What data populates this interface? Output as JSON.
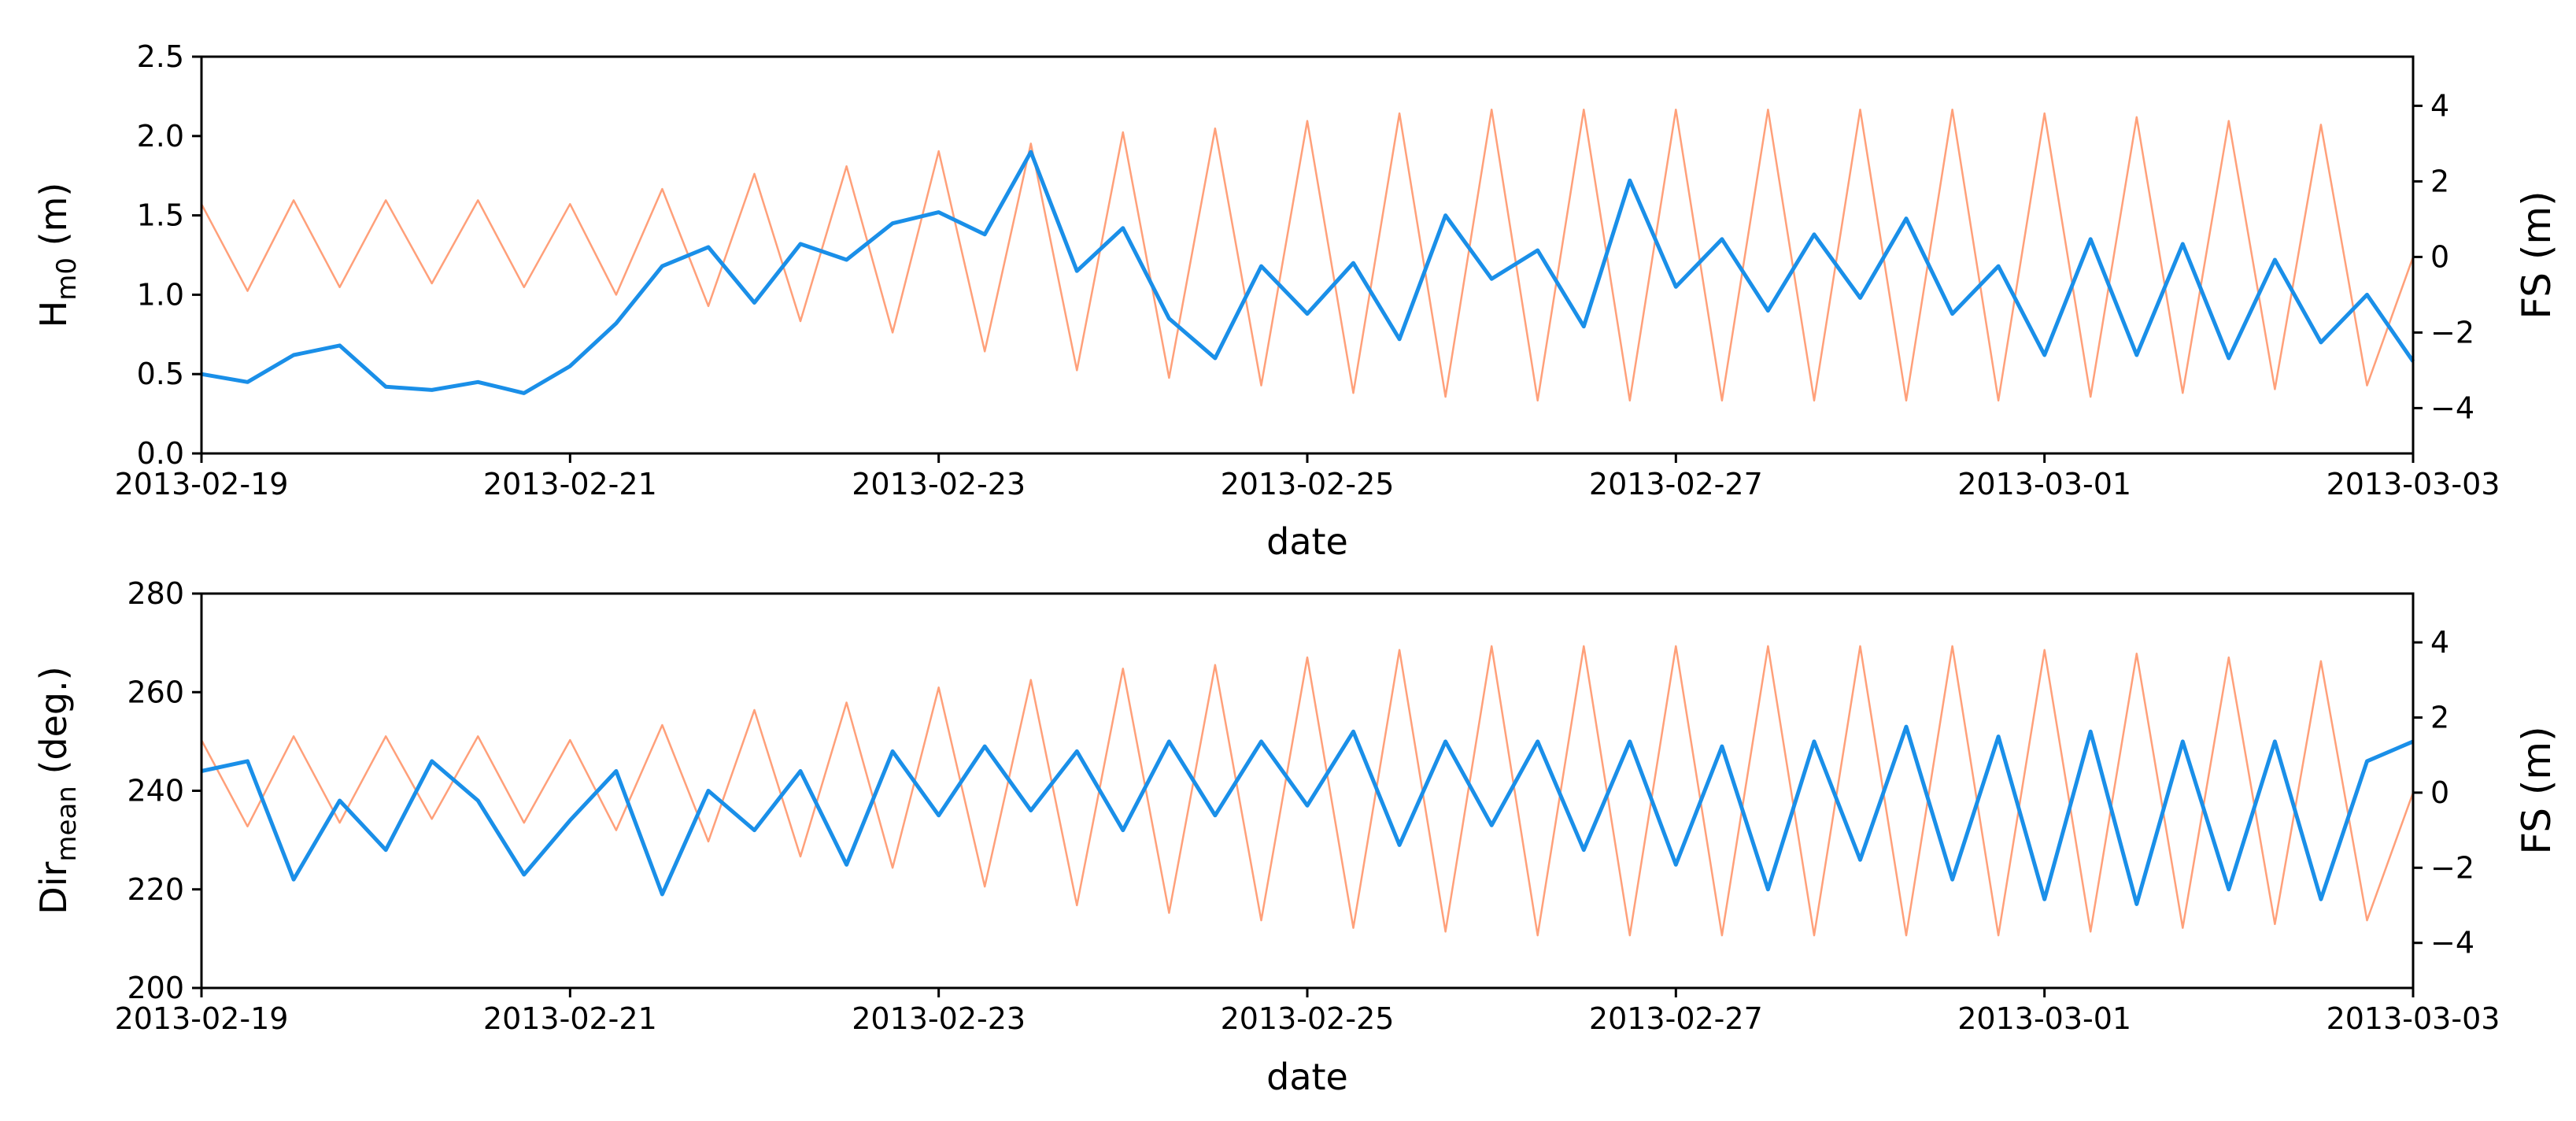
{
  "colors": {
    "primary": "#1a8fe8",
    "secondary": "#ffa07a",
    "axis": "#000000"
  },
  "chart_data": [
    {
      "type": "line",
      "xlabel": "date",
      "ylabel_left": {
        "main": "H",
        "sub": "m0",
        "rest": " (m)"
      },
      "ylabel_right": "FS (m)",
      "xlim": [
        "2013-02-19",
        "2013-03-03"
      ],
      "ylim_left": [
        0,
        2.5
      ],
      "ylim_right": [
        -5.2,
        5.3
      ],
      "xticks": [
        "2013-02-19",
        "2013-02-21",
        "2013-02-23",
        "2013-02-25",
        "2013-02-27",
        "2013-03-01",
        "2013-03-03"
      ],
      "yticks_left": [
        "0.0",
        "0.5",
        "1.0",
        "1.5",
        "2.0",
        "2.5"
      ],
      "yticks_right": [
        "−4",
        "−2",
        "0",
        "2",
        "4"
      ],
      "yticks_right_values": [
        -4,
        -2,
        0,
        2,
        4
      ],
      "grid": false,
      "series": [
        {
          "axis": "left",
          "color": "#1a8fe8",
          "x": [
            "2013-02-19 00:00",
            "2013-02-19 06:00",
            "2013-02-19 12:00",
            "2013-02-19 18:00",
            "2013-02-20 00:00",
            "2013-02-20 06:00",
            "2013-02-20 12:00",
            "2013-02-20 18:00",
            "2013-02-21 00:00",
            "2013-02-21 06:00",
            "2013-02-21 12:00",
            "2013-02-21 18:00",
            "2013-02-22 00:00",
            "2013-02-22 06:00",
            "2013-02-22 12:00",
            "2013-02-22 18:00",
            "2013-02-23 00:00",
            "2013-02-23 06:00",
            "2013-02-23 12:00",
            "2013-02-23 18:00",
            "2013-02-24 00:00",
            "2013-02-24 06:00",
            "2013-02-24 12:00",
            "2013-02-24 18:00",
            "2013-02-25 00:00",
            "2013-02-25 06:00",
            "2013-02-25 12:00",
            "2013-02-25 18:00",
            "2013-02-26 00:00",
            "2013-02-26 06:00",
            "2013-02-26 12:00",
            "2013-02-26 18:00",
            "2013-02-27 00:00",
            "2013-02-27 06:00",
            "2013-02-27 12:00",
            "2013-02-27 18:00",
            "2013-02-28 00:00",
            "2013-02-28 06:00",
            "2013-02-28 12:00",
            "2013-02-28 18:00",
            "2013-03-01 00:00",
            "2013-03-01 06:00",
            "2013-03-01 12:00",
            "2013-03-01 18:00",
            "2013-03-02 00:00",
            "2013-03-02 06:00",
            "2013-03-02 12:00",
            "2013-03-02 18:00",
            "2013-03-03 00:00"
          ],
          "values": [
            0.5,
            0.45,
            0.62,
            0.68,
            0.42,
            0.4,
            0.45,
            0.38,
            0.55,
            0.82,
            1.18,
            1.3,
            0.95,
            1.32,
            1.22,
            1.45,
            1.52,
            1.38,
            1.9,
            1.15,
            1.42,
            0.85,
            0.6,
            1.18,
            0.88,
            1.2,
            0.72,
            1.5,
            1.1,
            1.28,
            0.8,
            1.72,
            1.05,
            1.35,
            0.9,
            1.38,
            0.98,
            1.48,
            0.88,
            1.18,
            0.62,
            1.35,
            0.62,
            1.32,
            0.6,
            1.22,
            0.7,
            1.0,
            0.58
          ]
        },
        {
          "axis": "right",
          "color": "#ffa07a",
          "x": [
            "2013-02-19 00:00",
            "2013-02-19 06:00",
            "2013-02-19 12:00",
            "2013-02-19 18:00",
            "2013-02-20 00:00",
            "2013-02-20 06:00",
            "2013-02-20 12:00",
            "2013-02-20 18:00",
            "2013-02-21 00:00",
            "2013-02-21 06:00",
            "2013-02-21 12:00",
            "2013-02-21 18:00",
            "2013-02-22 00:00",
            "2013-02-22 06:00",
            "2013-02-22 12:00",
            "2013-02-22 18:00",
            "2013-02-23 00:00",
            "2013-02-23 06:00",
            "2013-02-23 12:00",
            "2013-02-23 18:00",
            "2013-02-24 00:00",
            "2013-02-24 06:00",
            "2013-02-24 12:00",
            "2013-02-24 18:00",
            "2013-02-25 00:00",
            "2013-02-25 06:00",
            "2013-02-25 12:00",
            "2013-02-25 18:00",
            "2013-02-26 00:00",
            "2013-02-26 06:00",
            "2013-02-26 12:00",
            "2013-02-26 18:00",
            "2013-02-27 00:00",
            "2013-02-27 06:00",
            "2013-02-27 12:00",
            "2013-02-27 18:00",
            "2013-02-28 00:00",
            "2013-02-28 06:00",
            "2013-02-28 12:00",
            "2013-02-28 18:00",
            "2013-03-01 00:00",
            "2013-03-01 06:00",
            "2013-03-01 12:00",
            "2013-03-01 18:00",
            "2013-03-02 00:00",
            "2013-03-02 06:00",
            "2013-03-02 12:00",
            "2013-03-02 18:00",
            "2013-03-03 00:00"
          ],
          "values": [
            1.4,
            -0.9,
            1.5,
            -0.8,
            1.5,
            -0.7,
            1.5,
            -0.8,
            1.4,
            -1.0,
            1.8,
            -1.3,
            2.2,
            -1.7,
            2.4,
            -2.0,
            2.8,
            -2.5,
            3.0,
            -3.0,
            3.3,
            -3.2,
            3.4,
            -3.4,
            3.6,
            -3.6,
            3.8,
            -3.7,
            3.9,
            -3.8,
            3.9,
            -3.8,
            3.9,
            -3.8,
            3.9,
            -3.8,
            3.9,
            -3.8,
            3.9,
            -3.8,
            3.8,
            -3.7,
            3.7,
            -3.6,
            3.6,
            -3.5,
            3.5,
            -3.4,
            0.0
          ]
        }
      ]
    },
    {
      "type": "line",
      "xlabel": "date",
      "ylabel_left": {
        "main": "Dir",
        "sub": "mean",
        "rest": " (deg.)"
      },
      "ylabel_right": "FS (m)",
      "xlim": [
        "2013-02-19",
        "2013-03-03"
      ],
      "ylim_left": [
        200,
        280
      ],
      "ylim_right": [
        -5.2,
        5.3
      ],
      "xticks": [
        "2013-02-19",
        "2013-02-21",
        "2013-02-23",
        "2013-02-25",
        "2013-02-27",
        "2013-03-01",
        "2013-03-03"
      ],
      "yticks_left": [
        "200",
        "220",
        "240",
        "260",
        "280"
      ],
      "yticks_right": [
        "−4",
        "−2",
        "0",
        "2",
        "4"
      ],
      "yticks_right_values": [
        -4,
        -2,
        0,
        2,
        4
      ],
      "grid": false,
      "series": [
        {
          "axis": "left",
          "color": "#1a8fe8",
          "x": [
            "2013-02-19 00:00",
            "2013-02-19 06:00",
            "2013-02-19 12:00",
            "2013-02-19 18:00",
            "2013-02-20 00:00",
            "2013-02-20 06:00",
            "2013-02-20 12:00",
            "2013-02-20 18:00",
            "2013-02-21 00:00",
            "2013-02-21 06:00",
            "2013-02-21 12:00",
            "2013-02-21 18:00",
            "2013-02-22 00:00",
            "2013-02-22 06:00",
            "2013-02-22 12:00",
            "2013-02-22 18:00",
            "2013-02-23 00:00",
            "2013-02-23 06:00",
            "2013-02-23 12:00",
            "2013-02-23 18:00",
            "2013-02-24 00:00",
            "2013-02-24 06:00",
            "2013-02-24 12:00",
            "2013-02-24 18:00",
            "2013-02-25 00:00",
            "2013-02-25 06:00",
            "2013-02-25 12:00",
            "2013-02-25 18:00",
            "2013-02-26 00:00",
            "2013-02-26 06:00",
            "2013-02-26 12:00",
            "2013-02-26 18:00",
            "2013-02-27 00:00",
            "2013-02-27 06:00",
            "2013-02-27 12:00",
            "2013-02-27 18:00",
            "2013-02-28 00:00",
            "2013-02-28 06:00",
            "2013-02-28 12:00",
            "2013-02-28 18:00",
            "2013-03-01 00:00",
            "2013-03-01 06:00",
            "2013-03-01 12:00",
            "2013-03-01 18:00",
            "2013-03-02 00:00",
            "2013-03-02 06:00",
            "2013-03-02 12:00",
            "2013-03-02 18:00",
            "2013-03-03 00:00"
          ],
          "values": [
            244,
            246,
            222,
            238,
            228,
            246,
            238,
            223,
            234,
            244,
            219,
            240,
            232,
            244,
            225,
            248,
            235,
            249,
            236,
            248,
            232,
            250,
            235,
            250,
            237,
            252,
            229,
            250,
            233,
            250,
            228,
            250,
            225,
            249,
            220,
            250,
            226,
            253,
            222,
            251,
            218,
            252,
            217,
            250,
            220,
            250,
            218,
            246,
            250
          ]
        },
        {
          "axis": "right",
          "color": "#ffa07a",
          "x": [
            "2013-02-19 00:00",
            "2013-02-19 06:00",
            "2013-02-19 12:00",
            "2013-02-19 18:00",
            "2013-02-20 00:00",
            "2013-02-20 06:00",
            "2013-02-20 12:00",
            "2013-02-20 18:00",
            "2013-02-21 00:00",
            "2013-02-21 06:00",
            "2013-02-21 12:00",
            "2013-02-21 18:00",
            "2013-02-22 00:00",
            "2013-02-22 06:00",
            "2013-02-22 12:00",
            "2013-02-22 18:00",
            "2013-02-23 00:00",
            "2013-02-23 06:00",
            "2013-02-23 12:00",
            "2013-02-23 18:00",
            "2013-02-24 00:00",
            "2013-02-24 06:00",
            "2013-02-24 12:00",
            "2013-02-24 18:00",
            "2013-02-25 00:00",
            "2013-02-25 06:00",
            "2013-02-25 12:00",
            "2013-02-25 18:00",
            "2013-02-26 00:00",
            "2013-02-26 06:00",
            "2013-02-26 12:00",
            "2013-02-26 18:00",
            "2013-02-27 00:00",
            "2013-02-27 06:00",
            "2013-02-27 12:00",
            "2013-02-27 18:00",
            "2013-02-28 00:00",
            "2013-02-28 06:00",
            "2013-02-28 12:00",
            "2013-02-28 18:00",
            "2013-03-01 00:00",
            "2013-03-01 06:00",
            "2013-03-01 12:00",
            "2013-03-01 18:00",
            "2013-03-02 00:00",
            "2013-03-02 06:00",
            "2013-03-02 12:00",
            "2013-03-02 18:00",
            "2013-03-03 00:00"
          ],
          "values": [
            1.4,
            -0.9,
            1.5,
            -0.8,
            1.5,
            -0.7,
            1.5,
            -0.8,
            1.4,
            -1.0,
            1.8,
            -1.3,
            2.2,
            -1.7,
            2.4,
            -2.0,
            2.8,
            -2.5,
            3.0,
            -3.0,
            3.3,
            -3.2,
            3.4,
            -3.4,
            3.6,
            -3.6,
            3.8,
            -3.7,
            3.9,
            -3.8,
            3.9,
            -3.8,
            3.9,
            -3.8,
            3.9,
            -3.8,
            3.9,
            -3.8,
            3.9,
            -3.8,
            3.8,
            -3.7,
            3.7,
            -3.6,
            3.6,
            -3.5,
            3.5,
            -3.4,
            0.0
          ]
        }
      ]
    }
  ]
}
